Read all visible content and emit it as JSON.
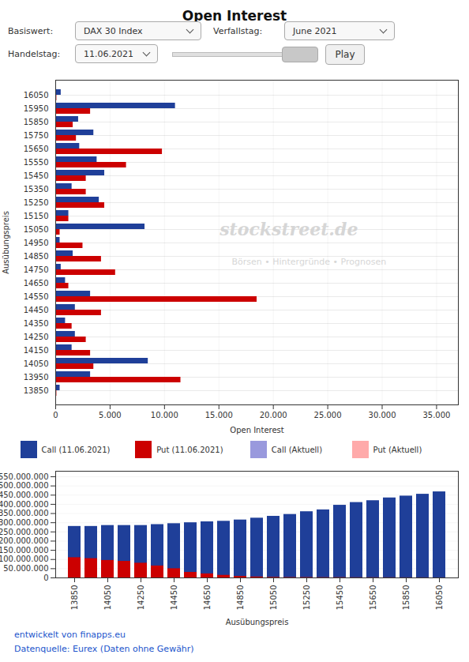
{
  "chart_data": [
    {
      "type": "bar",
      "orientation": "horizontal",
      "title": "Open Interest",
      "xlabel": "Open Interest",
      "ylabel": "Ausübungspreis",
      "categories": [
        "13850",
        "13950",
        "14050",
        "14150",
        "14250",
        "14350",
        "14450",
        "14550",
        "14650",
        "14750",
        "14850",
        "14950",
        "15050",
        "15150",
        "15250",
        "15350",
        "15450",
        "15550",
        "15650",
        "15750",
        "15850",
        "15950",
        "16050"
      ],
      "series": [
        {
          "name": "Call (11.06.2021)",
          "color": "#1f3f99",
          "values": [
            400,
            3200,
            8500,
            1500,
            1800,
            900,
            1800,
            3200,
            900,
            500,
            1600,
            400,
            8200,
            1200,
            4000,
            1500,
            4500,
            3800,
            2200,
            3500,
            2100,
            11000,
            500
          ]
        },
        {
          "name": "Put (11.06.2021)",
          "color": "#cc0000",
          "values": [
            100,
            11500,
            3500,
            3200,
            2800,
            1500,
            4200,
            18500,
            1200,
            5500,
            4200,
            2500,
            400,
            1200,
            4500,
            2800,
            2800,
            6500,
            9800,
            1900,
            1600,
            3200,
            100
          ]
        },
        {
          "name": "Call (Aktuell)",
          "color": "#9999dd",
          "values": [
            null,
            null,
            null,
            null,
            null,
            null,
            null,
            null,
            null,
            null,
            null,
            null,
            null,
            null,
            null,
            null,
            null,
            null,
            null,
            null,
            null,
            null,
            null
          ]
        },
        {
          "name": "Put (Aktuell)",
          "color": "#ffaaaa",
          "values": [
            null,
            null,
            null,
            null,
            null,
            null,
            null,
            null,
            null,
            null,
            null,
            null,
            null,
            null,
            null,
            null,
            null,
            null,
            null,
            null,
            null,
            null,
            null
          ]
        }
      ],
      "xlim": [
        0,
        37000
      ],
      "xticks": [
        0,
        {
          "value": 5000,
          "label": "5.000"
        },
        {
          "value": 10000,
          "label": "10.000"
        },
        {
          "value": 15000,
          "label": "15.000"
        },
        {
          "value": 20000,
          "label": "20.000"
        },
        {
          "value": 25000,
          "label": "25.000"
        },
        {
          "value": 30000,
          "label": "30.000"
        },
        {
          "value": 35000,
          "label": "35.000"
        }
      ],
      "grid": true,
      "annotations": [
        "Basiswert:",
        "DAX 30 Index",
        "Verfallstag:",
        "June 2021",
        "Handelstag:",
        "11.06.2021",
        "Play",
        "stockstreet.de",
        "Börsen • Hintergründe • Prognosen"
      ]
    },
    {
      "type": "bar",
      "stacked": false,
      "xlabel": "Ausübungspreis",
      "categories": [
        "13850",
        null,
        "14050",
        null,
        "14250",
        null,
        "14450",
        null,
        "14650",
        null,
        "14850",
        null,
        "15050",
        null,
        "15250",
        null,
        "15450",
        null,
        "15650",
        null,
        "15850",
        null,
        "16050"
      ],
      "series": [
        {
          "name": "Call (11.06.2021)",
          "color": "#1f3f99",
          "values": [
            280000000,
            280000000,
            285000000,
            285000000,
            285000000,
            290000000,
            295000000,
            300000000,
            305000000,
            308000000,
            315000000,
            325000000,
            335000000,
            345000000,
            360000000,
            370000000,
            395000000,
            410000000,
            420000000,
            435000000,
            445000000,
            455000000,
            468000000
          ]
        },
        {
          "name": "Put (11.06.2021)",
          "color": "#cc0000",
          "values": [
            110000000,
            105000000,
            95000000,
            90000000,
            80000000,
            65000000,
            50000000,
            30000000,
            22000000,
            14000000,
            8000000,
            5000000,
            3000000,
            2000000,
            2000000,
            1500000,
            1500000,
            1000000,
            1000000,
            800000,
            600000,
            500000,
            300000
          ]
        }
      ],
      "ylim": [
        0,
        580000000
      ],
      "yticks": [
        0,
        {
          "value": 50000000,
          "label": "50.000.000"
        },
        {
          "value": 100000000,
          "label": "100.000.000"
        },
        {
          "value": 150000000,
          "label": "150.000.000"
        },
        {
          "value": 200000000,
          "label": "200.000.000"
        },
        {
          "value": 250000000,
          "label": "250.000.000"
        },
        {
          "value": 300000000,
          "label": "300.000.000"
        },
        {
          "value": 350000000,
          "label": "350.000.000"
        },
        {
          "value": 400000000,
          "label": "400.000.000"
        },
        {
          "value": 450000000,
          "label": "450.000.000"
        },
        {
          "value": 500000000,
          "label": "500.000.000"
        },
        {
          "value": 550000000,
          "label": "550.000.000"
        }
      ],
      "grid": true,
      "annotations": [
        "entwickelt von finapps.eu",
        "Datenquelle: Eurex (Daten ohne Gewähr)"
      ]
    }
  ]
}
